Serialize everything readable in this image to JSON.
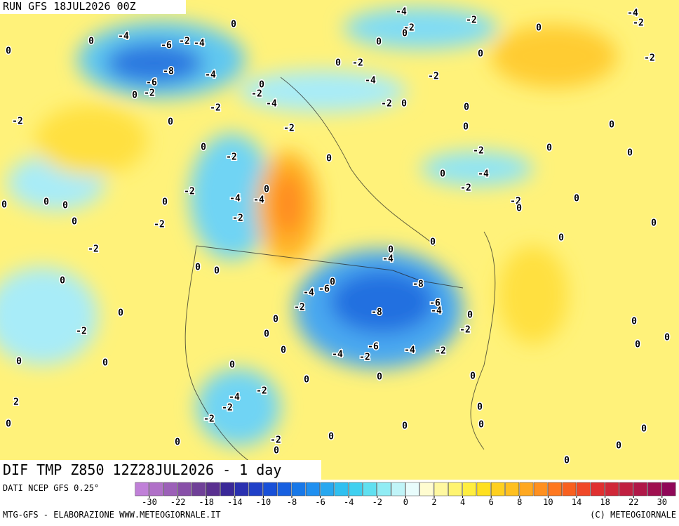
{
  "header": {
    "run": "RUN GFS 18JUL2026 00Z"
  },
  "footer": {
    "field": "DIF TMP Z850 12Z28JUL2026 - 1 day",
    "source": "DATI NCEP GFS 0.25°",
    "credit": "MTG-GFS - ELABORAZIONE WWW.METEOGIORNALE.IT",
    "copyright": "(C) METEOGIORNALE"
  },
  "colorbar": {
    "colors": [
      "#c080d8",
      "#b070c8",
      "#9c60b8",
      "#8850a8",
      "#704098",
      "#5a3090",
      "#3a2898",
      "#2a30b0",
      "#2040c8",
      "#1850d8",
      "#1860e0",
      "#1878e8",
      "#2090f0",
      "#28a8f0",
      "#30c0f0",
      "#40d0f0",
      "#60e0f0",
      "#90ecf4",
      "#c0f4f8",
      "#e8fcfc",
      "#fffcd0",
      "#fff8a0",
      "#fff470",
      "#ffee40",
      "#ffe020",
      "#ffd020",
      "#ffc020",
      "#ffa820",
      "#ff9020",
      "#ff7820",
      "#f86020",
      "#f04828",
      "#e03030",
      "#d02838",
      "#c02040",
      "#b01848",
      "#a01050",
      "#900858"
    ],
    "labels": [
      -30,
      -22,
      -18,
      -14,
      -10,
      -8,
      -6,
      -4,
      -2,
      0,
      2,
      4,
      6,
      8,
      10,
      14,
      18,
      22,
      30
    ]
  },
  "map_labels": [
    -4,
    0,
    -4,
    0,
    -2,
    -4,
    -6,
    0,
    -2,
    0,
    -2,
    0,
    -4,
    -2,
    -2,
    0,
    0,
    -2,
    0,
    -8,
    -4,
    -6,
    0,
    -2,
    0,
    -2,
    -4,
    -2,
    -4,
    -2,
    -2,
    0,
    0,
    -2,
    0,
    -2,
    0,
    0,
    0,
    -2,
    0,
    -2,
    0,
    0,
    0,
    -4,
    -2,
    -2,
    0,
    -4,
    -4,
    0,
    0,
    0,
    0,
    -2,
    0,
    0,
    -2,
    -2,
    0,
    0,
    0,
    0,
    -2,
    0,
    -4,
    0,
    0,
    0,
    0,
    -8,
    -6,
    -4,
    -2,
    -6,
    -4,
    -8,
    0,
    0,
    0,
    -2,
    -2,
    0,
    0,
    0,
    0,
    0,
    -4,
    -6,
    -2,
    -4,
    -2,
    0,
    0,
    0,
    0,
    0,
    0,
    -2,
    -4,
    -2,
    2,
    -2,
    0,
    0,
    0,
    0,
    0,
    -2,
    0,
    0,
    0,
    0,
    0
  ]
}
